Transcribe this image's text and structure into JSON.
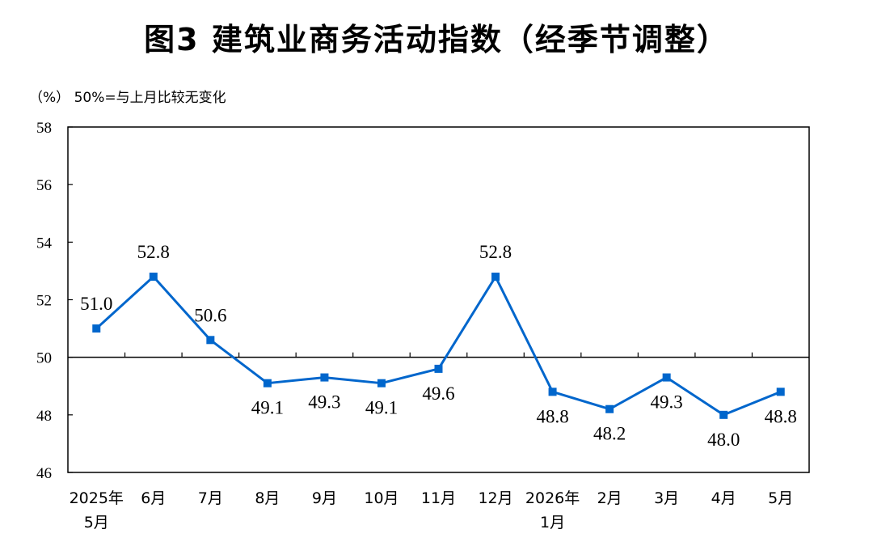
{
  "chart_data": {
    "type": "line",
    "title": "图3  建筑业商务活动指数（经季节调整）",
    "unit_label": "（%）",
    "note": "50%=与上月比较无变化",
    "categories": [
      [
        "2025年",
        "5月"
      ],
      [
        "6月"
      ],
      [
        "7月"
      ],
      [
        "8月"
      ],
      [
        "9月"
      ],
      [
        "10月"
      ],
      [
        "11月"
      ],
      [
        "12月"
      ],
      [
        "2026年",
        "1月"
      ],
      [
        "2月"
      ],
      [
        "3月"
      ],
      [
        "4月"
      ],
      [
        "5月"
      ]
    ],
    "series": [
      {
        "values": [
          51.0,
          52.8,
          50.6,
          49.1,
          49.3,
          49.1,
          49.6,
          52.8,
          48.8,
          48.2,
          49.3,
          48.0,
          48.8
        ],
        "labels": [
          "51.0",
          "52.8",
          "50.6",
          "49.1",
          "49.3",
          "49.1",
          "49.6",
          "52.8",
          "48.8",
          "48.2",
          "49.3",
          "48.0",
          "48.8"
        ],
        "color": "#0066CC"
      }
    ],
    "label_position": [
      "above",
      "above",
      "above",
      "below",
      "below",
      "below",
      "below",
      "above",
      "below",
      "below",
      "below",
      "below",
      "below"
    ],
    "yticks": [
      "46",
      "48",
      "50",
      "52",
      "54",
      "56",
      "58"
    ],
    "ylim": [
      46,
      58
    ],
    "reference_line": 50,
    "grid": false
  }
}
